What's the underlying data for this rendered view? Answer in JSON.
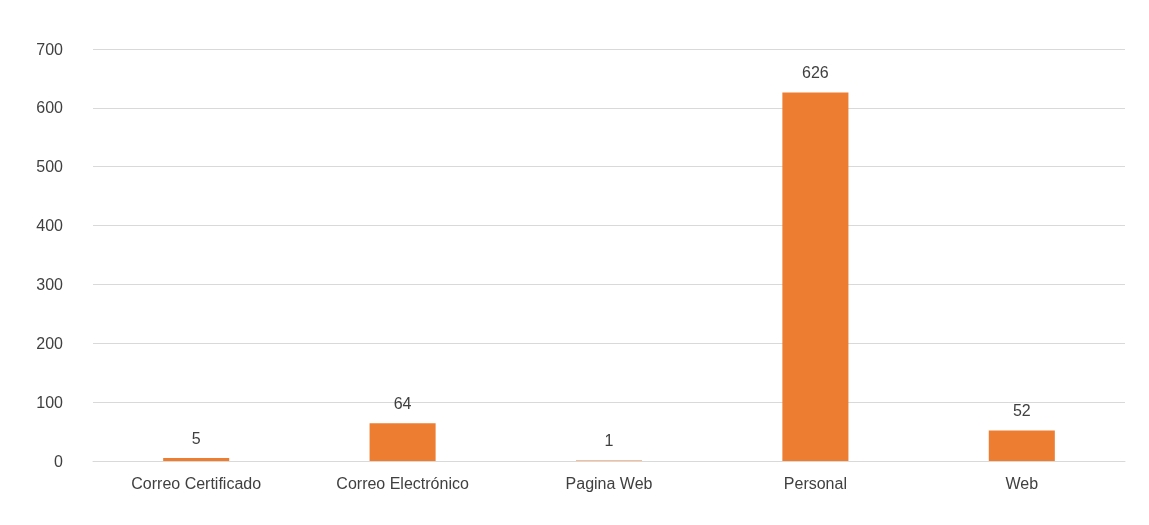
{
  "chart_data": {
    "type": "bar",
    "categories": [
      "Correo Certificado",
      "Correo Electrónico",
      "Pagina Web",
      "Personal",
      "Web"
    ],
    "values": [
      5,
      64,
      1,
      626,
      52
    ],
    "color": "#ed7d31",
    "ylim": [
      0,
      700
    ],
    "yticks": [
      0,
      100,
      200,
      300,
      400,
      500,
      600,
      700
    ],
    "grid": "y",
    "data_labels": true
  }
}
